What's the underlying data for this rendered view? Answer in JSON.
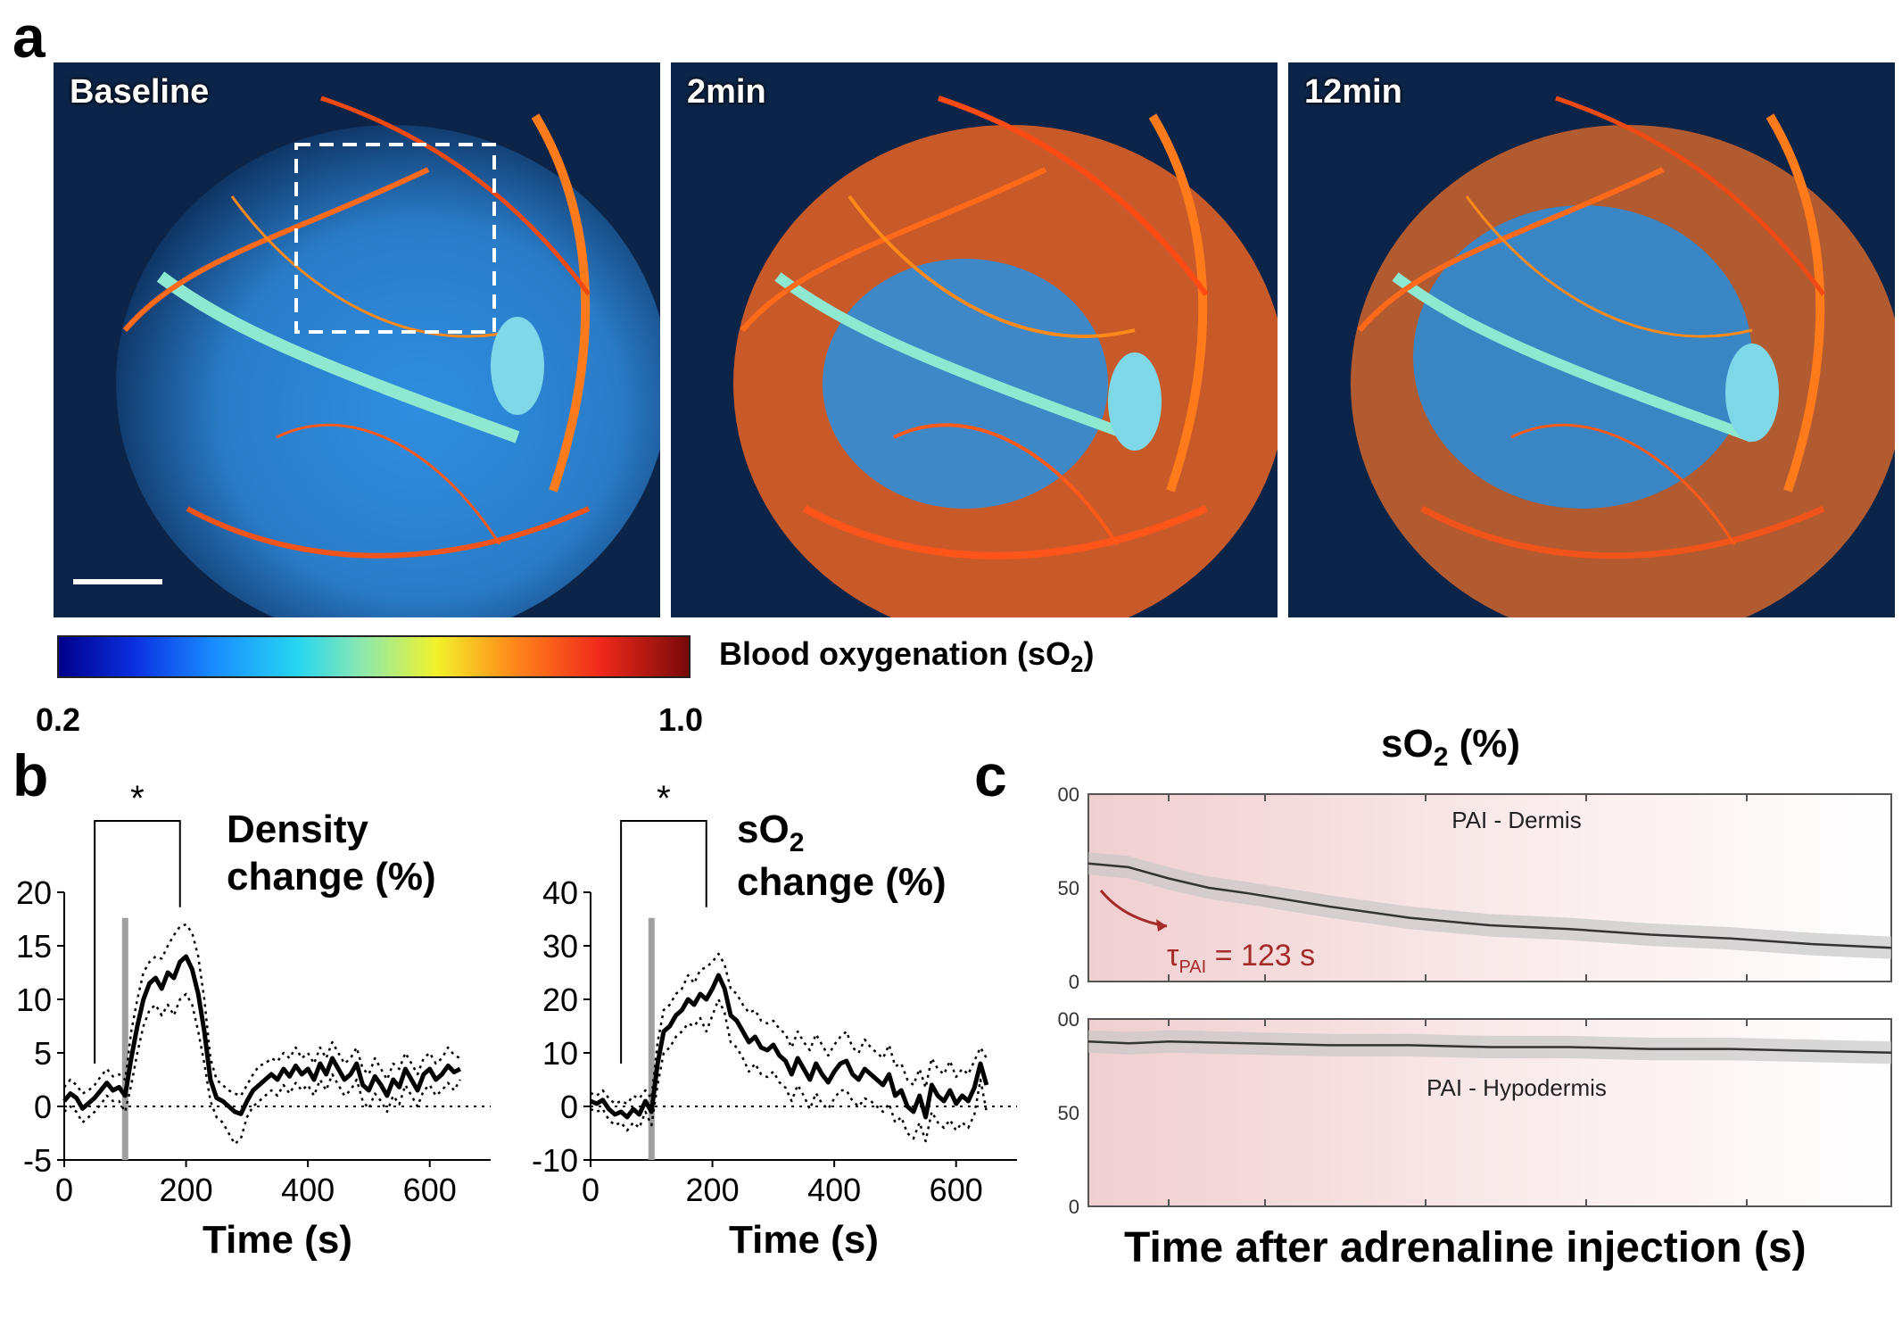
{
  "panel_letters": {
    "a": "a",
    "b": "b",
    "c": "c"
  },
  "panel_a": {
    "images": [
      {
        "label": "Baseline"
      },
      {
        "label": "2min"
      },
      {
        "label": "12min"
      }
    ],
    "colorbar": {
      "label": "Blood oxygenation (sO",
      "label_sub": "2",
      "label_end": ")",
      "min": "0.2",
      "max": "1.0"
    }
  },
  "panel_b_density": {
    "title_line1": "Density",
    "title_line2": "change (%)",
    "significance": "*"
  },
  "panel_b_so2": {
    "title_line1": "sO",
    "title_line1_sub": "2",
    "title_line2": "change (%)",
    "significance": "*"
  },
  "panel_c": {
    "title": "sO",
    "title_sub": "2",
    "title_end": " (%)",
    "xlabel": "Time after adrenaline injection (s)",
    "dermis_label": "PAI - Dermis",
    "hypodermis_label": "PAI - Hypodermis",
    "tau_symbol": "τ",
    "tau_sub": "PAI",
    "tau_value": " = 123 s"
  },
  "chart_data": [
    {
      "type": "line",
      "title": "Density change (%)",
      "xlabel": "Time (s)",
      "ylabel": "",
      "xlim": [
        0,
        700
      ],
      "ylim": [
        -5,
        20
      ],
      "xticks": [
        0,
        200,
        400,
        600
      ],
      "yticks": [
        -5,
        0,
        5,
        10,
        15,
        20
      ],
      "injection_time": 100,
      "significance_bracket": [
        50,
        190
      ],
      "series": [
        {
          "name": "mean",
          "x": [
            0,
            10,
            20,
            30,
            40,
            50,
            60,
            70,
            80,
            90,
            100,
            110,
            120,
            130,
            140,
            150,
            160,
            170,
            180,
            190,
            200,
            210,
            220,
            230,
            240,
            250,
            260,
            270,
            280,
            290,
            300,
            310,
            320,
            330,
            340,
            350,
            360,
            370,
            380,
            390,
            400,
            410,
            420,
            430,
            440,
            450,
            460,
            470,
            480,
            490,
            500,
            510,
            520,
            530,
            540,
            550,
            560,
            570,
            580,
            590,
            600,
            610,
            620,
            630,
            640,
            650
          ],
          "values": [
            0.5,
            1.2,
            0.8,
            -0.2,
            0.3,
            0.8,
            1.5,
            2.2,
            1.5,
            1.8,
            1.0,
            4.5,
            7.5,
            10.0,
            11.5,
            12.0,
            11.0,
            12.5,
            12.0,
            13.5,
            14.0,
            12.8,
            10.5,
            7.0,
            2.5,
            0.8,
            0.5,
            0.0,
            -0.5,
            -0.7,
            0.5,
            1.5,
            2.0,
            2.5,
            3.0,
            2.5,
            3.5,
            2.8,
            3.8,
            3.0,
            3.5,
            2.5,
            4.0,
            3.0,
            4.5,
            3.5,
            2.5,
            3.0,
            4.0,
            2.0,
            1.5,
            2.8,
            2.0,
            1.0,
            2.5,
            1.8,
            3.5,
            2.5,
            1.5,
            3.0,
            3.5,
            2.5,
            3.0,
            3.8,
            3.2,
            3.5
          ]
        },
        {
          "name": "upper",
          "x": [
            0,
            10,
            20,
            30,
            40,
            50,
            60,
            70,
            80,
            90,
            100,
            110,
            120,
            130,
            140,
            150,
            160,
            170,
            180,
            190,
            200,
            210,
            220,
            230,
            240,
            250,
            260,
            270,
            280,
            290,
            300,
            310,
            320,
            330,
            340,
            350,
            360,
            370,
            380,
            390,
            400,
            410,
            420,
            430,
            440,
            450,
            460,
            470,
            480,
            490,
            500,
            510,
            520,
            530,
            540,
            550,
            560,
            570,
            580,
            590,
            600,
            610,
            620,
            630,
            640,
            650
          ],
          "values": [
            1.8,
            2.5,
            2.0,
            1.2,
            1.5,
            2.0,
            2.8,
            3.5,
            2.8,
            3.0,
            2.5,
            7.0,
            10.0,
            12.5,
            13.5,
            14.0,
            13.8,
            15.0,
            16.0,
            16.8,
            17.0,
            16.2,
            14.0,
            10.0,
            4.5,
            2.5,
            2.0,
            1.5,
            1.2,
            1.0,
            2.0,
            3.0,
            3.8,
            4.0,
            4.5,
            4.2,
            5.0,
            4.5,
            5.5,
            4.5,
            5.0,
            4.0,
            5.5,
            4.5,
            6.0,
            5.0,
            4.0,
            4.5,
            5.5,
            3.5,
            3.0,
            4.5,
            3.5,
            2.5,
            4.0,
            3.5,
            5.0,
            4.0,
            3.0,
            4.5,
            5.0,
            4.0,
            4.5,
            5.5,
            4.8,
            4.5
          ]
        },
        {
          "name": "lower",
          "x": [
            0,
            10,
            20,
            30,
            40,
            50,
            60,
            70,
            80,
            90,
            100,
            110,
            120,
            130,
            140,
            150,
            160,
            170,
            180,
            190,
            200,
            210,
            220,
            230,
            240,
            250,
            260,
            270,
            280,
            290,
            300,
            310,
            320,
            330,
            340,
            350,
            360,
            370,
            380,
            390,
            400,
            410,
            420,
            430,
            440,
            450,
            460,
            470,
            480,
            490,
            500,
            510,
            520,
            530,
            540,
            550,
            560,
            570,
            580,
            590,
            600,
            610,
            620,
            630,
            640,
            650
          ],
          "values": [
            -0.5,
            0.0,
            -0.5,
            -1.5,
            -1.0,
            -0.5,
            0.2,
            1.0,
            0.5,
            0.5,
            -0.5,
            2.0,
            5.0,
            7.5,
            9.0,
            9.5,
            8.5,
            9.5,
            8.5,
            10.0,
            10.5,
            9.5,
            7.0,
            4.0,
            0.5,
            -1.0,
            -1.5,
            -2.5,
            -3.5,
            -3.0,
            -1.0,
            0.0,
            0.5,
            1.0,
            1.5,
            1.0,
            2.0,
            1.2,
            2.2,
            1.5,
            2.0,
            1.0,
            2.5,
            1.5,
            3.0,
            2.0,
            1.0,
            1.5,
            2.5,
            0.5,
            -0.2,
            1.2,
            0.5,
            -0.5,
            1.0,
            0.2,
            2.0,
            1.0,
            0.0,
            1.5,
            2.0,
            1.0,
            1.5,
            2.2,
            1.5,
            2.5
          ]
        }
      ]
    },
    {
      "type": "line",
      "title": "sO2 change (%)",
      "xlabel": "Time (s)",
      "ylabel": "",
      "xlim": [
        0,
        700
      ],
      "ylim": [
        -10,
        40
      ],
      "xticks": [
        0,
        200,
        400,
        600
      ],
      "yticks": [
        -10,
        0,
        10,
        20,
        30,
        40
      ],
      "injection_time": 100,
      "significance_bracket": [
        50,
        190
      ],
      "series": [
        {
          "name": "mean",
          "x": [
            0,
            10,
            20,
            30,
            40,
            50,
            60,
            70,
            80,
            90,
            100,
            110,
            120,
            130,
            140,
            150,
            160,
            170,
            180,
            190,
            200,
            210,
            220,
            230,
            240,
            250,
            260,
            270,
            280,
            290,
            300,
            310,
            320,
            330,
            340,
            350,
            360,
            370,
            380,
            390,
            400,
            410,
            420,
            430,
            440,
            450,
            460,
            470,
            480,
            490,
            500,
            510,
            520,
            530,
            540,
            550,
            560,
            570,
            580,
            590,
            600,
            610,
            620,
            630,
            640,
            650
          ],
          "values": [
            1.0,
            0.5,
            1.2,
            -0.5,
            -1.5,
            -1.0,
            -2.0,
            -0.5,
            -1.5,
            1.0,
            -1.0,
            8.0,
            14.0,
            15.0,
            17.0,
            18.0,
            20.0,
            19.0,
            21.0,
            20.0,
            22.0,
            24.5,
            22.0,
            17.0,
            16.0,
            14.0,
            12.0,
            13.0,
            11.0,
            10.5,
            11.5,
            9.5,
            8.5,
            6.0,
            9.0,
            7.0,
            5.0,
            8.0,
            6.0,
            4.5,
            6.5,
            8.0,
            8.5,
            6.0,
            5.0,
            7.0,
            6.0,
            5.0,
            4.0,
            6.0,
            2.0,
            3.0,
            0.0,
            -1.0,
            2.0,
            -2.0,
            4.0,
            2.0,
            1.0,
            3.0,
            0.5,
            2.0,
            1.0,
            3.5,
            8.0,
            4.0
          ]
        },
        {
          "name": "upper",
          "x": [
            0,
            10,
            20,
            30,
            40,
            50,
            60,
            70,
            80,
            90,
            100,
            110,
            120,
            130,
            140,
            150,
            160,
            170,
            180,
            190,
            200,
            210,
            220,
            230,
            240,
            250,
            260,
            270,
            280,
            290,
            300,
            310,
            320,
            330,
            340,
            350,
            360,
            370,
            380,
            390,
            400,
            410,
            420,
            430,
            440,
            450,
            460,
            470,
            480,
            490,
            500,
            510,
            520,
            530,
            540,
            550,
            560,
            570,
            580,
            590,
            600,
            610,
            620,
            630,
            640,
            650
          ],
          "values": [
            2.5,
            2.0,
            3.0,
            1.5,
            0.5,
            1.0,
            0.5,
            2.0,
            1.5,
            3.0,
            1.5,
            12.0,
            18.0,
            19.0,
            21.0,
            22.0,
            24.5,
            23.0,
            25.5,
            26.0,
            27.0,
            28.5,
            26.5,
            22.0,
            21.0,
            19.0,
            17.5,
            18.0,
            16.0,
            15.5,
            16.0,
            14.5,
            13.5,
            11.0,
            14.0,
            12.0,
            10.5,
            13.5,
            11.5,
            9.5,
            11.5,
            13.0,
            14.0,
            11.0,
            10.0,
            12.5,
            11.0,
            10.0,
            9.0,
            11.5,
            7.5,
            8.0,
            5.0,
            4.0,
            7.0,
            3.5,
            9.0,
            7.0,
            6.0,
            8.5,
            5.5,
            7.0,
            6.0,
            8.5,
            11.0,
            9.0
          ]
        },
        {
          "name": "lower",
          "x": [
            0,
            10,
            20,
            30,
            40,
            50,
            60,
            70,
            80,
            90,
            100,
            110,
            120,
            130,
            140,
            150,
            160,
            170,
            180,
            190,
            200,
            210,
            220,
            230,
            240,
            250,
            260,
            270,
            280,
            290,
            300,
            310,
            320,
            330,
            340,
            350,
            360,
            370,
            380,
            390,
            400,
            410,
            420,
            430,
            440,
            450,
            460,
            470,
            480,
            490,
            500,
            510,
            520,
            530,
            540,
            550,
            560,
            570,
            580,
            590,
            600,
            610,
            620,
            630,
            640,
            650
          ],
          "values": [
            -0.5,
            -1.0,
            -0.5,
            -2.5,
            -3.5,
            -3.0,
            -4.5,
            -3.0,
            -4.0,
            -1.0,
            -3.5,
            4.0,
            10.0,
            11.0,
            13.0,
            14.0,
            15.5,
            15.0,
            16.5,
            14.0,
            17.0,
            20.0,
            17.5,
            12.0,
            11.0,
            9.0,
            6.5,
            8.0,
            6.0,
            5.5,
            6.5,
            4.5,
            3.5,
            1.0,
            4.0,
            2.0,
            -0.5,
            2.5,
            0.5,
            -0.5,
            1.5,
            3.0,
            3.0,
            1.0,
            0.0,
            1.5,
            1.0,
            0.0,
            -1.0,
            0.5,
            -3.0,
            -2.0,
            -5.0,
            -6.0,
            -3.0,
            -6.5,
            -1.0,
            -3.0,
            -4.0,
            -2.5,
            -4.5,
            -3.0,
            -4.0,
            -1.5,
            5.0,
            -1.0
          ]
        }
      ]
    },
    {
      "type": "line",
      "title": "PAI - Dermis",
      "xlabel": "Time after adrenaline injection (s)",
      "ylabel": "sO2 (%)",
      "ylim": [
        0,
        100
      ],
      "yticks": [
        "0",
        "50",
        "00"
      ],
      "tau_s": 123,
      "series": [
        {
          "name": "mean",
          "x": [
            0,
            0.05,
            0.1,
            0.15,
            0.2,
            0.3,
            0.4,
            0.5,
            0.6,
            0.7,
            0.8,
            0.9,
            1.0
          ],
          "values": [
            63,
            61,
            55,
            50,
            47,
            40,
            34,
            30,
            28,
            25,
            23,
            20,
            18
          ]
        }
      ]
    },
    {
      "type": "line",
      "title": "PAI - Hypodermis",
      "xlabel": "Time after adrenaline injection (s)",
      "ylabel": "sO2 (%)",
      "ylim": [
        0,
        100
      ],
      "yticks": [
        "0",
        "50",
        "00"
      ],
      "series": [
        {
          "name": "mean",
          "x": [
            0,
            0.05,
            0.1,
            0.2,
            0.3,
            0.4,
            0.5,
            0.6,
            0.7,
            0.8,
            0.9,
            1.0
          ],
          "values": [
            88,
            87,
            88,
            87,
            86,
            86,
            85,
            85,
            84,
            84,
            83,
            82
          ]
        }
      ]
    }
  ]
}
